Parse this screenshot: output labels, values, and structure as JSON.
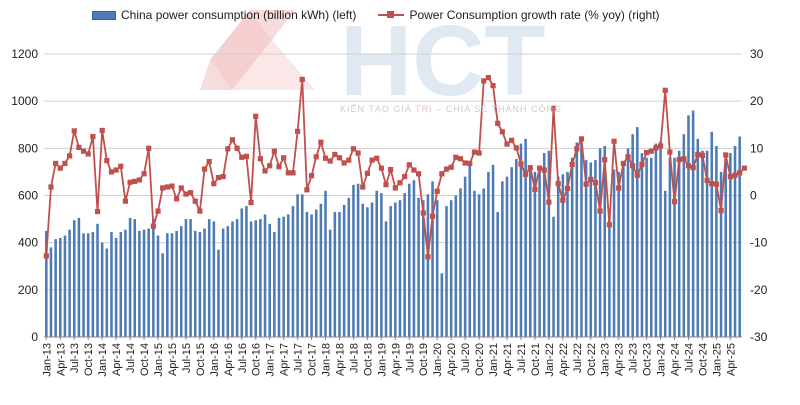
{
  "chart_data": {
    "type": "bar+line",
    "title": "",
    "legend": [
      {
        "name": "China power consumption (billion kWh) (left)",
        "kind": "bar",
        "color": "#4f7bb5"
      },
      {
        "name": "Power Consumption growth rate (% yoy) (right)",
        "kind": "line",
        "color": "#c0504d"
      }
    ],
    "legend_position": "top-left",
    "left_axis": {
      "min": 0,
      "max": 1200,
      "ticks": [
        "0",
        "200",
        "400",
        "600",
        "800",
        "1000",
        "1200"
      ],
      "tick_values": [
        0,
        200,
        400,
        600,
        800,
        1000,
        1200
      ]
    },
    "right_axis": {
      "min": -30,
      "max": 30,
      "ticks": [
        "-30",
        "-20",
        "-10",
        "0",
        "10",
        "20",
        "30"
      ],
      "tick_values": [
        -30,
        -20,
        -10,
        0,
        10,
        20,
        30
      ]
    },
    "grid": "horizontal",
    "x_tick_labels": [
      "Jan-13",
      "Apr-13",
      "Jul-13",
      "Oct-13",
      "Jan-14",
      "Apr-14",
      "Jul-14",
      "Oct-14",
      "Jan-15",
      "Apr-15",
      "Jul-15",
      "Oct-15",
      "Jan-16",
      "Apr-16",
      "Jul-16",
      "Oct-16",
      "Jan-17",
      "Apr-17",
      "Jul-17",
      "Oct-17",
      "Jan-18",
      "Apr-18",
      "Jul-18",
      "Oct-18",
      "Jan-19",
      "Apr-19",
      "Jul-19",
      "Oct-19",
      "Jan-20",
      "Apr-20",
      "Jul-20",
      "Oct-20",
      "Jan-21",
      "Apr-21",
      "Jul-21",
      "Oct-21",
      "Jan-22",
      "Apr-22",
      "Jul-22",
      "Oct-22",
      "Jan-23",
      "Apr-23",
      "Jul-23",
      "Oct-23",
      "Jan-24",
      "Apr-24",
      "Jul-24",
      "Oct-24",
      "Jan-25",
      "Apr-25"
    ],
    "months_count": 150,
    "series": [
      {
        "name": "China power consumption (billion kWh) (left)",
        "axis": "left",
        "values": [
          450,
          380,
          415,
          420,
          430,
          455,
          495,
          505,
          440,
          440,
          445,
          480,
          400,
          375,
          445,
          420,
          445,
          455,
          505,
          500,
          450,
          455,
          460,
          500,
          430,
          355,
          440,
          440,
          450,
          470,
          500,
          500,
          450,
          445,
          460,
          500,
          490,
          370,
          460,
          470,
          490,
          500,
          545,
          555,
          490,
          495,
          500,
          520,
          480,
          445,
          505,
          510,
          520,
          555,
          605,
          605,
          530,
          520,
          540,
          565,
          620,
          455,
          530,
          530,
          560,
          590,
          645,
          650,
          565,
          550,
          570,
          620,
          610,
          490,
          555,
          570,
          580,
          610,
          650,
          665,
          590,
          580,
          605,
          660,
          580,
          270,
          555,
          580,
          600,
          630,
          680,
          730,
          620,
          605,
          630,
          700,
          730,
          530,
          660,
          680,
          720,
          755,
          820,
          840,
          720,
          700,
          720,
          780,
          790,
          510,
          680,
          690,
          700,
          760,
          825,
          850,
          750,
          740,
          750,
          800,
          810,
          500,
          710,
          700,
          730,
          800,
          860,
          890,
          780,
          760,
          760,
          820,
          830,
          620,
          760,
          760,
          790,
          860,
          940,
          960,
          840,
          790,
          790,
          870,
          810,
          700,
          760,
          780,
          810,
          850
        ],
        "color": "#4f7bb5"
      },
      {
        "name": "Power Consumption growth rate (% yoy) (right)",
        "axis": "right",
        "values": [
          -12.8,
          1.8,
          6.8,
          5.8,
          6.8,
          8.4,
          13.7,
          10.2,
          9.4,
          8.8,
          12.5,
          -3.4,
          13.8,
          7.4,
          5.0,
          5.4,
          6.2,
          -1.2,
          2.8,
          3.0,
          3.3,
          4.6,
          10.0,
          -6.5,
          -3.3,
          1.6,
          1.8,
          2.0,
          -0.7,
          1.6,
          0.3,
          0.6,
          -1.2,
          -3.3,
          5.6,
          7.2,
          2.5,
          3.8,
          4.0,
          9.9,
          11.8,
          10.0,
          8.1,
          8.3,
          -1.5,
          16.8,
          7.8,
          5.2,
          6.3,
          9.4,
          6.1,
          8.0,
          4.8,
          4.8,
          13.6,
          24.6,
          1.2,
          4.2,
          8.2,
          11.3,
          7.9,
          7.3,
          8.7,
          8.0,
          6.9,
          7.5,
          9.9,
          9.0,
          1.8,
          4.7,
          7.5,
          7.9,
          5.8,
          2.3,
          5.5,
          1.6,
          2.7,
          4.0,
          6.5,
          5.4,
          4.6,
          -3.7,
          -13.0,
          -4.4,
          0.9,
          4.6,
          5.6,
          6.0,
          8.1,
          7.8,
          6.9,
          6.8,
          9.2,
          9.0,
          24.3,
          25.0,
          23.3,
          15.3,
          13.5,
          10.9,
          11.7,
          10.1,
          6.7,
          4.5,
          5.9,
          1.3,
          5.8,
          5.4,
          -1.4,
          18.5,
          2.5,
          -1.0,
          1.5,
          6.6,
          9.9,
          12.0,
          2.4,
          3.4,
          2.7,
          -3.3,
          7.6,
          -6.2,
          11.5,
          1.6,
          6.8,
          8.2,
          6.3,
          4.3,
          6.6,
          9.1,
          9.4,
          10.1,
          10.5,
          22.3,
          9.2,
          -1.3,
          7.6,
          7.8,
          6.3,
          5.9,
          8.7,
          8.5,
          3.2,
          2.5,
          2.4,
          -3.2,
          8.6,
          4.0,
          4.3,
          4.8,
          5.8
        ],
        "color": "#c0504d"
      }
    ]
  },
  "watermark": {
    "logo_text": "HCT",
    "tagline": "KIẾN TẠO GIÁ TRỊ – CHIA SẺ THÀNH CÔNG"
  }
}
